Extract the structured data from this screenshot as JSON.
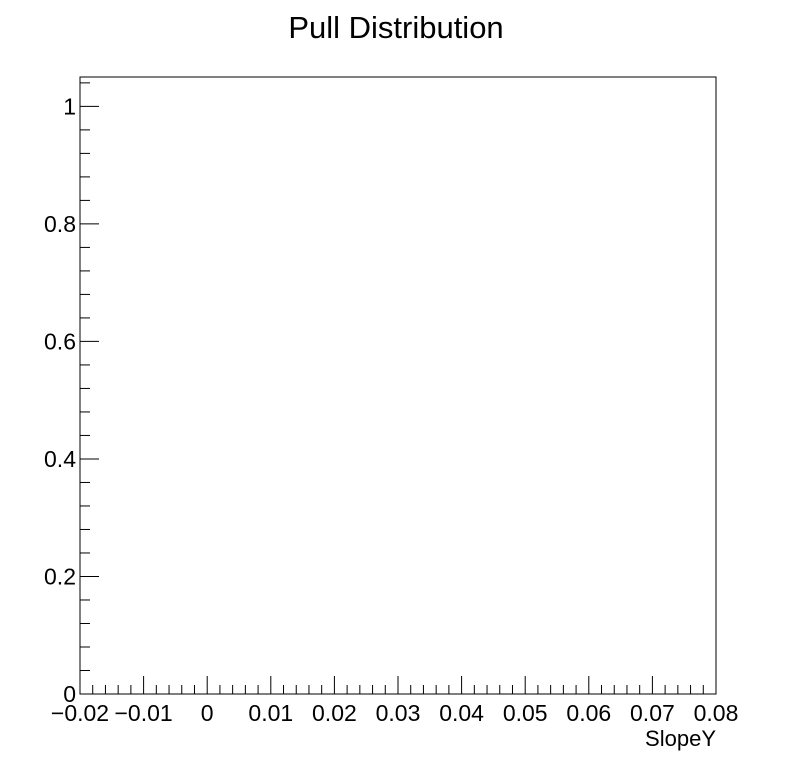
{
  "chart_data": {
    "type": "bar",
    "title": "Pull Distribution",
    "xlabel": "SlopeY",
    "ylabel": "",
    "xlim": [
      -0.02,
      0.08
    ],
    "ylim": [
      0,
      1.05
    ],
    "x_ticks": [
      -0.02,
      -0.01,
      0,
      0.01,
      0.02,
      0.03,
      0.04,
      0.05,
      0.06,
      0.07,
      0.08
    ],
    "x_tick_labels": [
      "−0.02",
      "−0.01",
      "0",
      "0.01",
      "0.02",
      "0.03",
      "0.04",
      "0.05",
      "0.06",
      "0.07",
      "0.08"
    ],
    "y_ticks": [
      0,
      0.2,
      0.4,
      0.6,
      0.8,
      1
    ],
    "y_tick_labels": [
      "0",
      "0.2",
      "0.4",
      "0.6",
      "0.8",
      "1"
    ],
    "series": [],
    "grid": false,
    "legend": "none"
  }
}
